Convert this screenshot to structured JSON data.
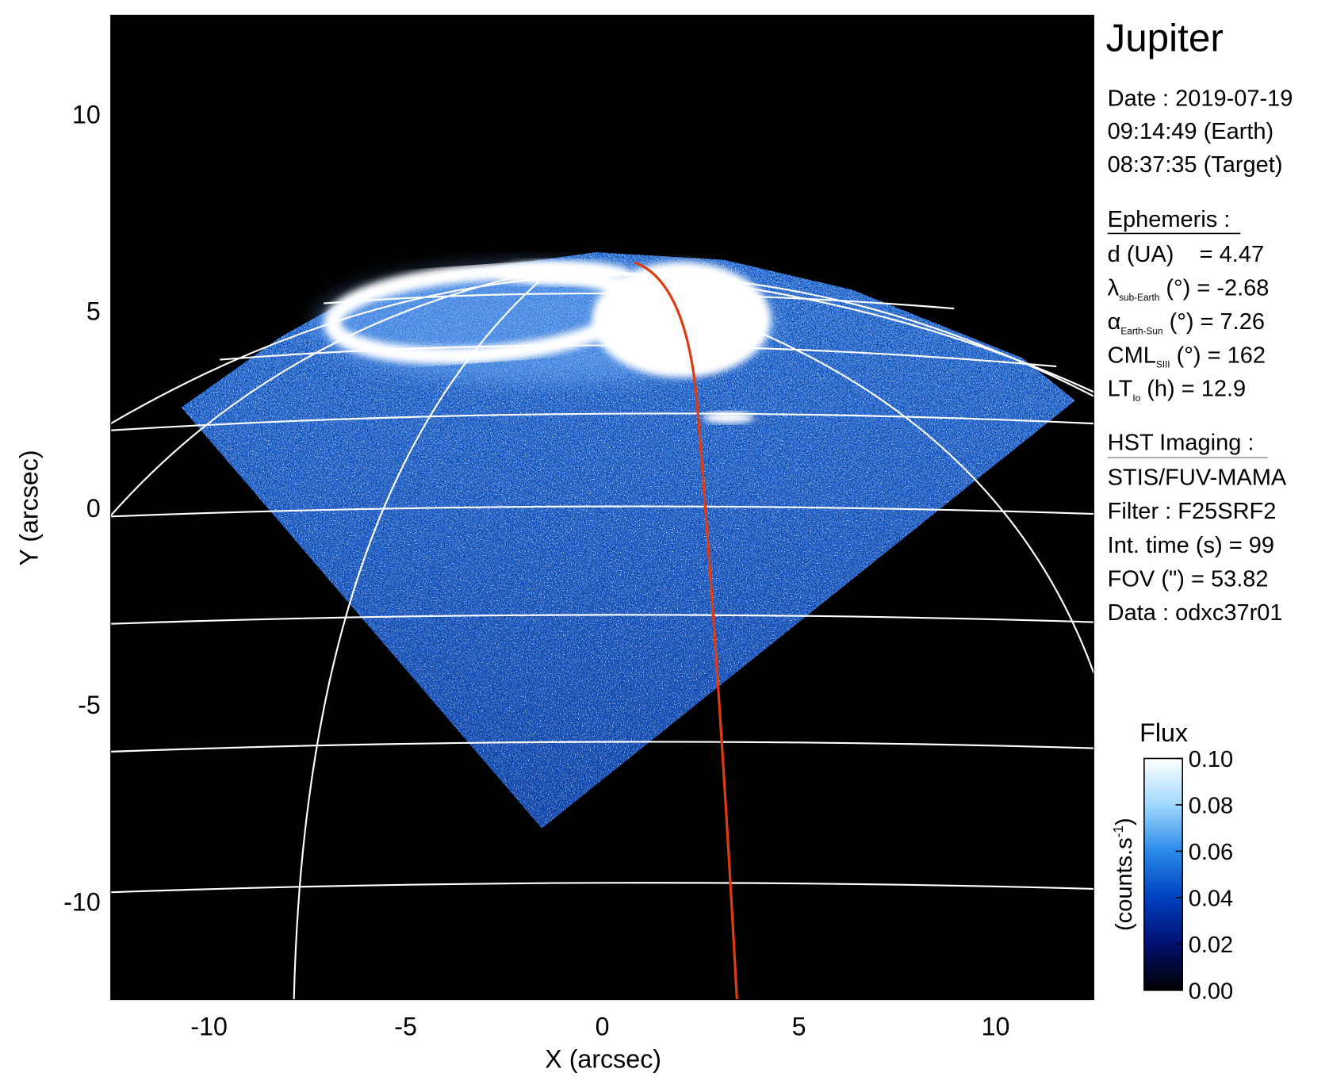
{
  "chart_data": {
    "type": "image",
    "x_label": "X (arcsec)",
    "y_label": "Y (arcsec)",
    "xlim": [
      -12.5,
      12.5
    ],
    "ylim": [
      -12.5,
      12.5
    ],
    "xticks": [
      -10,
      -5,
      0,
      5,
      10
    ],
    "yticks": [
      -10,
      -5,
      0,
      5,
      10
    ],
    "colorbar": {
      "title": "Flux",
      "label": "(counts.s",
      "label_sup": "-1",
      "label_end": ")",
      "clim": [
        0,
        0.1
      ],
      "colormap": [
        "#000000",
        "#001070",
        "#0040c0",
        "#2a8ae8",
        "#a0d8ff",
        "#ffffff"
      ],
      "ticks": [
        {
          "value": 0,
          "label": "0.00"
        },
        {
          "value": 0.02,
          "label": "0.02"
        },
        {
          "value": 0.04,
          "label": "0.04"
        },
        {
          "value": 0.06,
          "label": "0.06"
        },
        {
          "value": 0.08,
          "label": "0.08"
        },
        {
          "value": 0.1,
          "label": "0.10"
        }
      ]
    },
    "info": {
      "title": "Jupiter",
      "date_lines": [
        "Date : 2019-07-19",
        "09:14:49 (Earth)",
        "08:37:35 (Target)"
      ],
      "ephemeris": {
        "heading": "Ephemeris :",
        "items": [
          {
            "symbol": "d (UA)    = 4.47"
          },
          {
            "symbol": "λ",
            "sub": "sub-Earth",
            "text": " (°) = -2.68"
          },
          {
            "symbol": "α",
            "sub": "Earth-Sun",
            "text": " (°) = 7.26"
          },
          {
            "symbol": "CML",
            "sub": "SIII",
            "text": " (°) = 162"
          },
          {
            "symbol": "LT",
            "sub": "Io",
            "text": " (h) = 12.9"
          }
        ]
      },
      "imaging": {
        "heading": "HST Imaging :",
        "lines": [
          "STIS/FUV-MAMA",
          "Filter : F25SRF2",
          "Int. time (s) = 99",
          "FOV (\") = 53.82",
          "Data : odxc37r01"
        ]
      }
    }
  }
}
